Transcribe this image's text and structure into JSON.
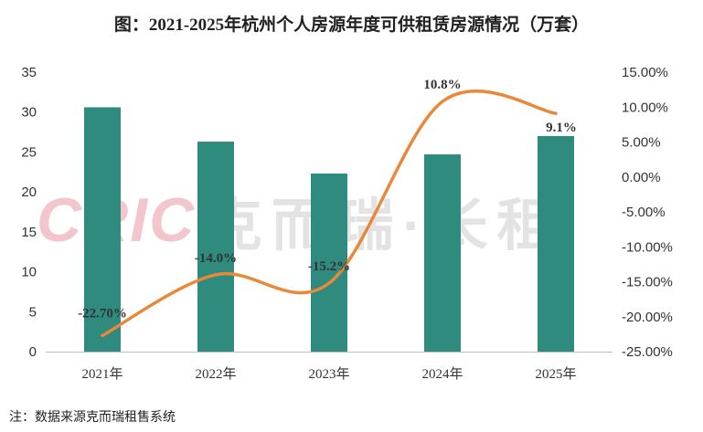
{
  "title": "图：2021-2025年杭州个人房源年度可供租赁房源情况（万套）",
  "note": "注：数据来源克而瑞租售系统",
  "watermark": {
    "logo": "CRIC",
    "text": "克而瑞·长租"
  },
  "colors": {
    "bar": "#2e8b7e",
    "line": "#e8893a"
  },
  "chart_data": {
    "type": "bar",
    "categories": [
      "2021年",
      "2022年",
      "2023年",
      "2024年",
      "2025年"
    ],
    "series": [
      {
        "type": "bar",
        "axis": "left",
        "values": [
          30.6,
          26.3,
          22.3,
          24.7,
          27.0
        ]
      },
      {
        "type": "line",
        "axis": "right",
        "values": [
          -22.7,
          -14.0,
          -15.2,
          10.8,
          9.1
        ],
        "labels": [
          "-22.70%",
          "-14.0%",
          "-15.2%",
          "10.8%",
          "9.1%"
        ]
      }
    ],
    "y_left": {
      "ylim": [
        0,
        35
      ],
      "ticks": [
        "0",
        "5",
        "10",
        "15",
        "20",
        "25",
        "30",
        "35"
      ]
    },
    "y_right": {
      "ylim": [
        -25,
        15
      ],
      "ticks": [
        "-25.00%",
        "-20.00%",
        "-15.00%",
        "-10.00%",
        "-5.00%",
        "0.00%",
        "5.00%",
        "10.00%",
        "15.00%"
      ]
    },
    "grid": false,
    "legend": "none"
  }
}
